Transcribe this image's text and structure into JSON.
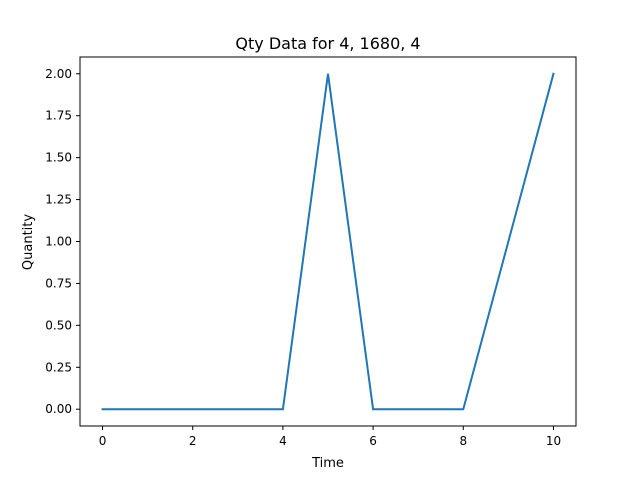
{
  "chart_data": {
    "type": "line",
    "title": "Qty Data for 4, 1680, 4",
    "xlabel": "Time",
    "ylabel": "Quantity",
    "xlim": [
      -0.5,
      10.5
    ],
    "ylim": [
      -0.1,
      2.1
    ],
    "xticks": [
      0,
      2,
      4,
      6,
      8,
      10
    ],
    "xtick_labels": [
      "0",
      "2",
      "4",
      "6",
      "8",
      "10"
    ],
    "yticks": [
      0.0,
      0.25,
      0.5,
      0.75,
      1.0,
      1.25,
      1.5,
      1.75,
      2.0
    ],
    "ytick_labels": [
      "0.00",
      "0.25",
      "0.50",
      "0.75",
      "1.00",
      "1.25",
      "1.50",
      "1.75",
      "2.00"
    ],
    "grid": false,
    "series": [
      {
        "x": [
          0,
          1,
          2,
          3,
          4,
          5,
          6,
          7,
          8,
          9,
          10
        ],
        "y": [
          0,
          0,
          0,
          0,
          0,
          2,
          0,
          0,
          0,
          1,
          2
        ],
        "color": "#1f77b4"
      }
    ]
  }
}
